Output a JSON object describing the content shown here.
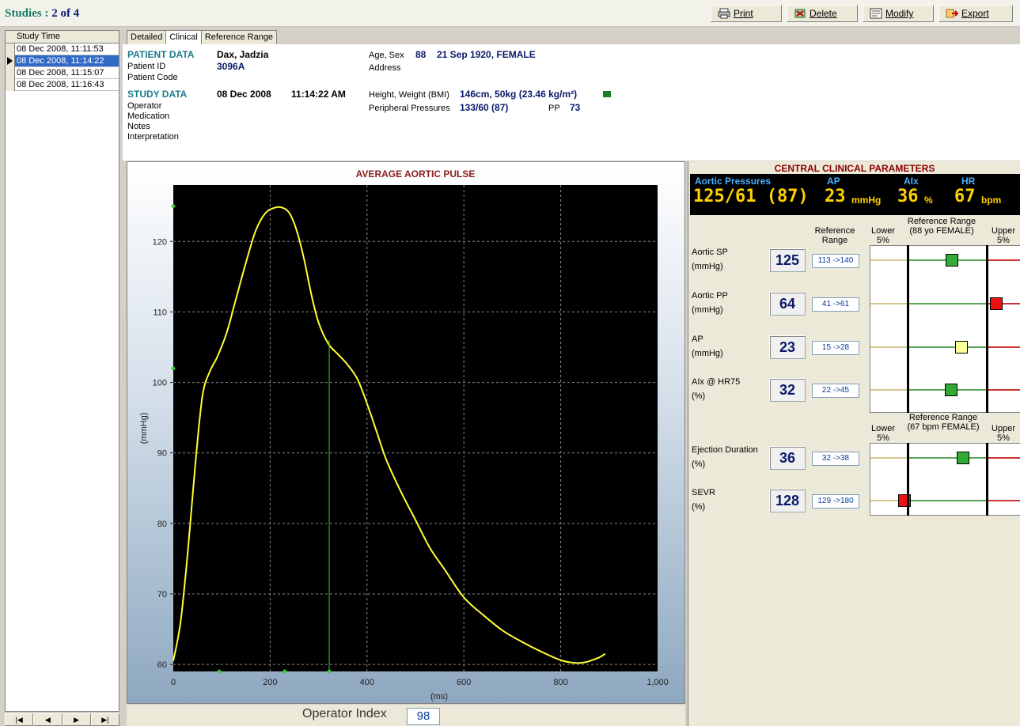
{
  "toolbar": {
    "title_prefix": "Studies :",
    "title_count": "2 of 4",
    "print": "Print",
    "delete": "Delete",
    "modify": "Modify",
    "export": "Export"
  },
  "study_list": {
    "header": "Study Time",
    "rows": [
      "08 Dec 2008, 11:11:53",
      "08 Dec 2008, 11:14:22",
      "08 Dec 2008, 11:15:07",
      "08 Dec 2008, 11:16:43"
    ],
    "selected_index": 1
  },
  "tabs": [
    "Detailed",
    "Clinical",
    "Reference Range"
  ],
  "active_tab": "Clinical",
  "patient": {
    "heading": "PATIENT DATA",
    "name": "Dax, Jadzia",
    "id_label": "Patient ID",
    "id": "3096A",
    "code_label": "Patient Code",
    "age_sex_label": "Age, Sex",
    "age": "88",
    "dob_sex": "21 Sep 1920, FEMALE",
    "address_label": "Address"
  },
  "study": {
    "heading": "STUDY DATA",
    "date": "08 Dec 2008",
    "time": "11:14:22 AM",
    "operator_label": "Operator",
    "medication_label": "Medication",
    "notes_label": "Notes",
    "interpretation_label": "Interpretation",
    "hw_label": "Height, Weight (BMI)",
    "hw_value": "146cm, 50kg (23.46 kg/m²)",
    "pp_label": "Peripheral Pressures",
    "pp_value": "133/60 (87)",
    "pp_short_label": "PP",
    "pp_short_value": "73"
  },
  "chart_data": {
    "type": "line",
    "title": "AVERAGE AORTIC PULSE",
    "xlabel": "(ms)",
    "ylabel": "(mmHg)",
    "xlim": [
      0,
      1000
    ],
    "ylim": [
      59,
      128
    ],
    "xticks": [
      0,
      200,
      400,
      600,
      800,
      1000
    ],
    "xtick_labels": [
      "0",
      "200",
      "400",
      "600",
      "800",
      "1,000"
    ],
    "yticks": [
      60,
      70,
      80,
      90,
      100,
      110,
      120
    ],
    "grid": true,
    "series": [
      {
        "x": [
          0,
          15,
          30,
          45,
          60,
          75,
          90,
          110,
          130,
          150,
          170,
          190,
          210,
          225,
          240,
          255,
          270,
          285,
          300,
          320,
          340,
          360,
          380,
          400,
          420,
          440,
          470,
          500,
          530,
          560,
          600,
          640,
          680,
          720,
          760,
          800,
          830,
          850,
          865,
          880,
          892
        ],
        "y": [
          60.5,
          66,
          76,
          88,
          98,
          101.5,
          103.5,
          107,
          112,
          117,
          121.5,
          124,
          124.8,
          124.8,
          124,
          121.5,
          117.5,
          112.5,
          108.5,
          105.5,
          104,
          102.5,
          100.5,
          97,
          93,
          89,
          84.5,
          80.5,
          76.5,
          73.5,
          69.5,
          67,
          64.8,
          63.2,
          61.8,
          60.6,
          60.2,
          60.3,
          60.6,
          61,
          61.5
        ]
      }
    ],
    "marker_time_ms": 322,
    "marker_points": [
      {
        "x": 0,
        "y": 125
      },
      {
        "x": 0,
        "y": 102
      },
      {
        "x": 95,
        "y": 59
      },
      {
        "x": 230,
        "y": 59
      },
      {
        "x": 322,
        "y": 59
      }
    ]
  },
  "operator_index": {
    "label": "Operator Index",
    "value": "98"
  },
  "ccp": {
    "title": "CENTRAL CLINICAL PARAMETERS",
    "aortic_label": "Aortic Pressures",
    "aortic_value": "125/61 (87)",
    "ap_label": "AP",
    "ap_value": "23",
    "ap_unit": "mmHg",
    "aix_label": "AIx",
    "aix_value": "36",
    "aix_unit": "%",
    "hr_label": "HR",
    "hr_value": "67",
    "hr_unit": "bpm",
    "ref_range_header": "Reference Range",
    "lower_header": "Lower 5%",
    "range_header_1": "Reference Range (88 yo FEMALE)",
    "upper_header": "Upper 5%",
    "range_header_2": "Reference Range (67 bpm FEMALE)",
    "params": [
      {
        "name": "Aortic SP",
        "unit": "(mmHg)",
        "value": "125",
        "range": "113 ->140",
        "color": "#33aa33",
        "pos": 0.56
      },
      {
        "name": "Aortic PP",
        "unit": "(mmHg)",
        "value": "64",
        "range": "41 ->61",
        "color": "#ee1111",
        "pos": 1.12
      },
      {
        "name": "AP",
        "unit": "(mmHg)",
        "value": "23",
        "range": "15 ->28",
        "color": "#ffff99",
        "pos": 0.68
      },
      {
        "name": "AIx @ HR75",
        "unit": "(%)",
        "value": "32",
        "range": "22 ->45",
        "color": "#33aa33",
        "pos": 0.55
      },
      {
        "name": "Ejection Duration",
        "unit": "(%)",
        "value": "36",
        "range": "32 ->38",
        "color": "#33aa33",
        "pos": 0.7
      },
      {
        "name": "SEVR",
        "unit": "(%)",
        "value": "128",
        "range": "129 ->180",
        "color": "#ee1111",
        "pos": -0.04
      }
    ]
  }
}
